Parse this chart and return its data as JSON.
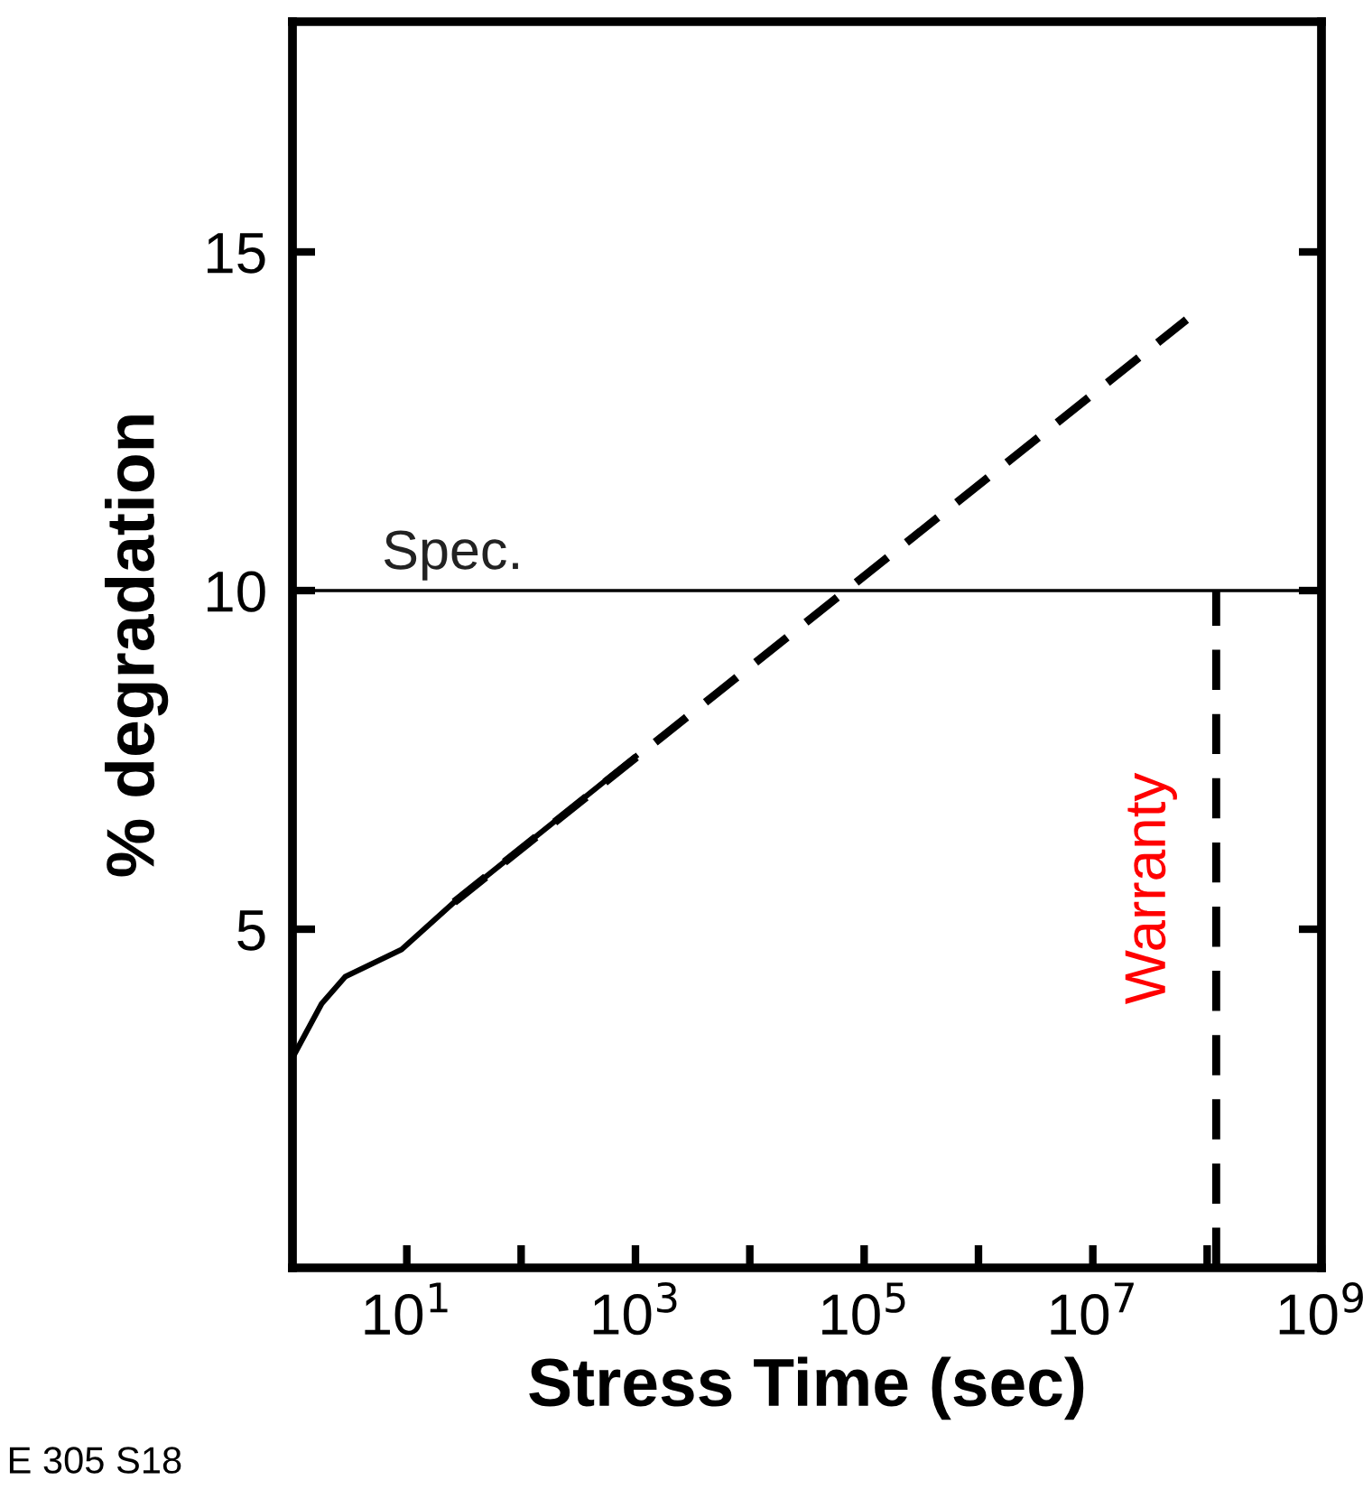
{
  "chart_data": {
    "type": "line",
    "xlabel": "Stress Time (sec)",
    "ylabel": "% degradation",
    "log": "x",
    "series": [
      {
        "color": "#000000",
        "line_style": "solid",
        "x": [
          1,
          1.8,
          2.9,
          9,
          26,
          1000
        ],
        "values": [
          3.1,
          3.9,
          4.3,
          4.7,
          5.4,
          7.55
        ]
      },
      {
        "color": "#000000",
        "line_style": "dashed",
        "x": [
          26,
          66000000
        ],
        "values": [
          5.4,
          14.0
        ]
      }
    ],
    "xlim": [
      1,
      1000000000
    ],
    "xticks": [
      {
        "value": 10,
        "label": "10$^{1}$"
      },
      {
        "value": 100,
        "label": null
      },
      {
        "value": 1000,
        "label": "10$^{3}$"
      },
      {
        "value": 10000,
        "label": null
      },
      {
        "value": 100000,
        "label": "10$^{5}$"
      },
      {
        "value": 1000000,
        "label": null
      },
      {
        "value": 10000000,
        "label": "10$^{7}$"
      },
      {
        "value": 100000000,
        "label": null
      },
      {
        "value": 1000000000,
        "label": "10$^{9}$"
      }
    ],
    "ylim": [
      0,
      18.4
    ],
    "yticks": [
      5,
      10,
      15
    ],
    "ref_lines": [
      {
        "axis": "y",
        "value": 10,
        "label": "Spec.",
        "color": "#000000",
        "line_style": "solid"
      },
      {
        "axis": "x",
        "value": 120000000,
        "label": "Warranty",
        "color": "#000000",
        "line_style": "dashed"
      }
    ],
    "annotations": [
      "E 305 S18"
    ],
    "grid": false,
    "legend": false
  }
}
